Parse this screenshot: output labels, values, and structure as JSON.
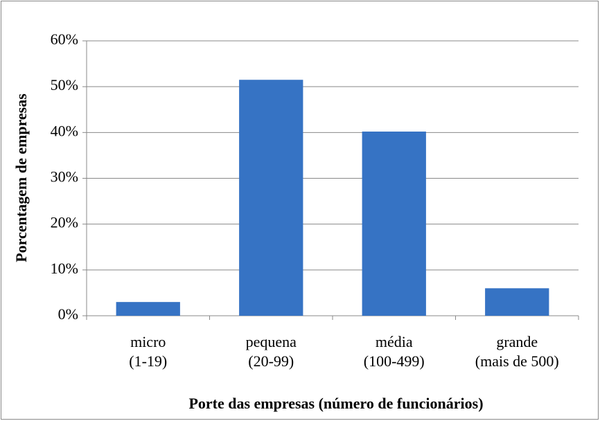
{
  "chart_data": {
    "type": "bar",
    "x_label": "Porte das empresas (número de funcionários)",
    "y_label": "Porcentagem de empresas",
    "categories": [
      [
        "micro",
        "(1-19)"
      ],
      [
        "pequena",
        "(20-99)"
      ],
      [
        "média",
        "(100-499)"
      ],
      [
        "grande",
        "(mais de 500)"
      ]
    ],
    "values": [
      3,
      51.5,
      40.2,
      6
    ],
    "color": "#3673c4",
    "ylim": [
      0,
      60
    ],
    "yticks": [
      {
        "value": 0,
        "label": "0%"
      },
      {
        "value": 10,
        "label": "10%"
      },
      {
        "value": 20,
        "label": "20%"
      },
      {
        "value": 30,
        "label": "30%"
      },
      {
        "value": 40,
        "label": "40%"
      },
      {
        "value": 50,
        "label": "50%"
      },
      {
        "value": 60,
        "label": "60%"
      }
    ],
    "grid": true
  }
}
